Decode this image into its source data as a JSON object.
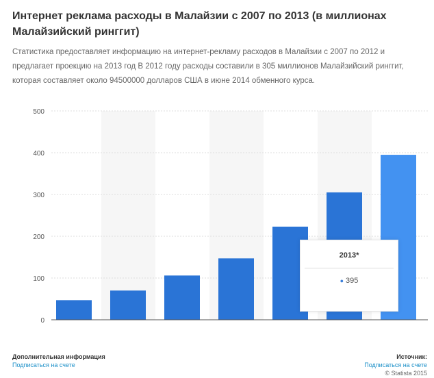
{
  "header": {
    "title": "Интернет реклама расходы в Малайзии с 2007 по 2013 (в миллионах Малайзийский ринггит)",
    "description": "Статистика предоставляет информацию на интернет-рекламу расходов в Малайзии с 2007 по 2012 и предлагает проекцию на 2013 год В 2012 году расходы составили в 305 миллионов Малайзийский ринггит, которая составляет около 94500000 долларов США в июне 2014 обменного курса."
  },
  "chart_data": {
    "type": "bar",
    "title": "Интернет реклама расходы в Малайзии с 2007 по 2013 (в миллионах Малайзийский ринггит)",
    "values": [
      47,
      70,
      106,
      147,
      223,
      305,
      395
    ],
    "ylim": [
      0,
      500
    ],
    "yticks": [
      "0",
      "100",
      "200",
      "300",
      "400",
      "500"
    ],
    "grid": true,
    "colors": {
      "bar": "#2a74d6",
      "highlight": "#4392f1"
    },
    "tooltip": {
      "label": "2013*",
      "value": "395"
    }
  },
  "footer": {
    "more_info": "Дополнительная информация",
    "login_left": "Подписаться на счете",
    "source_label": "Источник:",
    "login_right": "Подписаться на счете",
    "copyright": "© Statista 2015"
  }
}
